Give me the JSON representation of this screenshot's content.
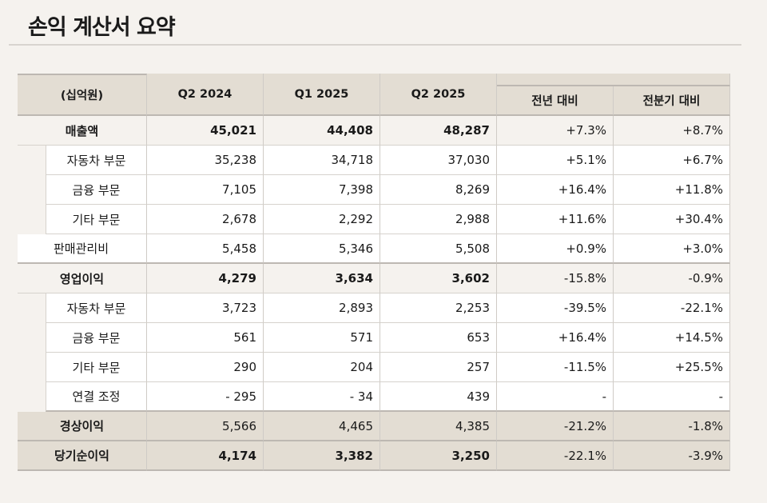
{
  "title": "손익 계산서 요약",
  "table": {
    "unit_label": "(십억원)",
    "headers": [
      "Q2 2024",
      "Q1 2025",
      "Q2 2025",
      "전년 대비",
      "전분기 대비"
    ],
    "rows": [
      {
        "label": "매출액",
        "type": "total",
        "values": [
          "45,021",
          "44,408",
          "48,287",
          "+7.3%",
          "+8.7%"
        ]
      },
      {
        "label": "자동차 부문",
        "type": "sub",
        "values": [
          "35,238",
          "34,718",
          "37,030",
          "+5.1%",
          "+6.7%"
        ]
      },
      {
        "label": "금융 부문",
        "type": "sub",
        "values": [
          "7,105",
          "7,398",
          "8,269",
          "+16.4%",
          "+11.8%"
        ]
      },
      {
        "label": "기타 부문",
        "type": "sub",
        "values": [
          "2,678",
          "2,292",
          "2,988",
          "+11.6%",
          "+30.4%"
        ]
      },
      {
        "label": "판매관리비",
        "type": "plain",
        "values": [
          "5,458",
          "5,346",
          "5,508",
          "+0.9%",
          "+3.0%"
        ]
      },
      {
        "label": "영업이익",
        "type": "total",
        "values": [
          "4,279",
          "3,634",
          "3,602",
          "-15.8%",
          "-0.9%"
        ]
      },
      {
        "label": "자동차 부문",
        "type": "sub",
        "values": [
          "3,723",
          "2,893",
          "2,253",
          "-39.5%",
          "-22.1%"
        ]
      },
      {
        "label": "금융 부문",
        "type": "sub",
        "values": [
          "561",
          "571",
          "653",
          "+16.4%",
          "+14.5%"
        ]
      },
      {
        "label": "기타 부문",
        "type": "sub",
        "values": [
          "290",
          "204",
          "257",
          "-11.5%",
          "+25.5%"
        ]
      },
      {
        "label": "연결 조정",
        "type": "sub",
        "values": [
          "- 295",
          "- 34",
          "439",
          "-",
          "-"
        ]
      },
      {
        "label": "경상이익",
        "type": "shaded",
        "values": [
          "5,566",
          "4,465",
          "4,385",
          "-21.2%",
          "-1.8%"
        ]
      },
      {
        "label": "당기순이익",
        "type": "shaded-bold",
        "values": [
          "4,174",
          "3,382",
          "3,250",
          "-22.1%",
          "-3.9%"
        ]
      }
    ]
  },
  "colors": {
    "background": "#f5f2ee",
    "header": "#e3ddd3",
    "row_white": "#ffffff"
  }
}
